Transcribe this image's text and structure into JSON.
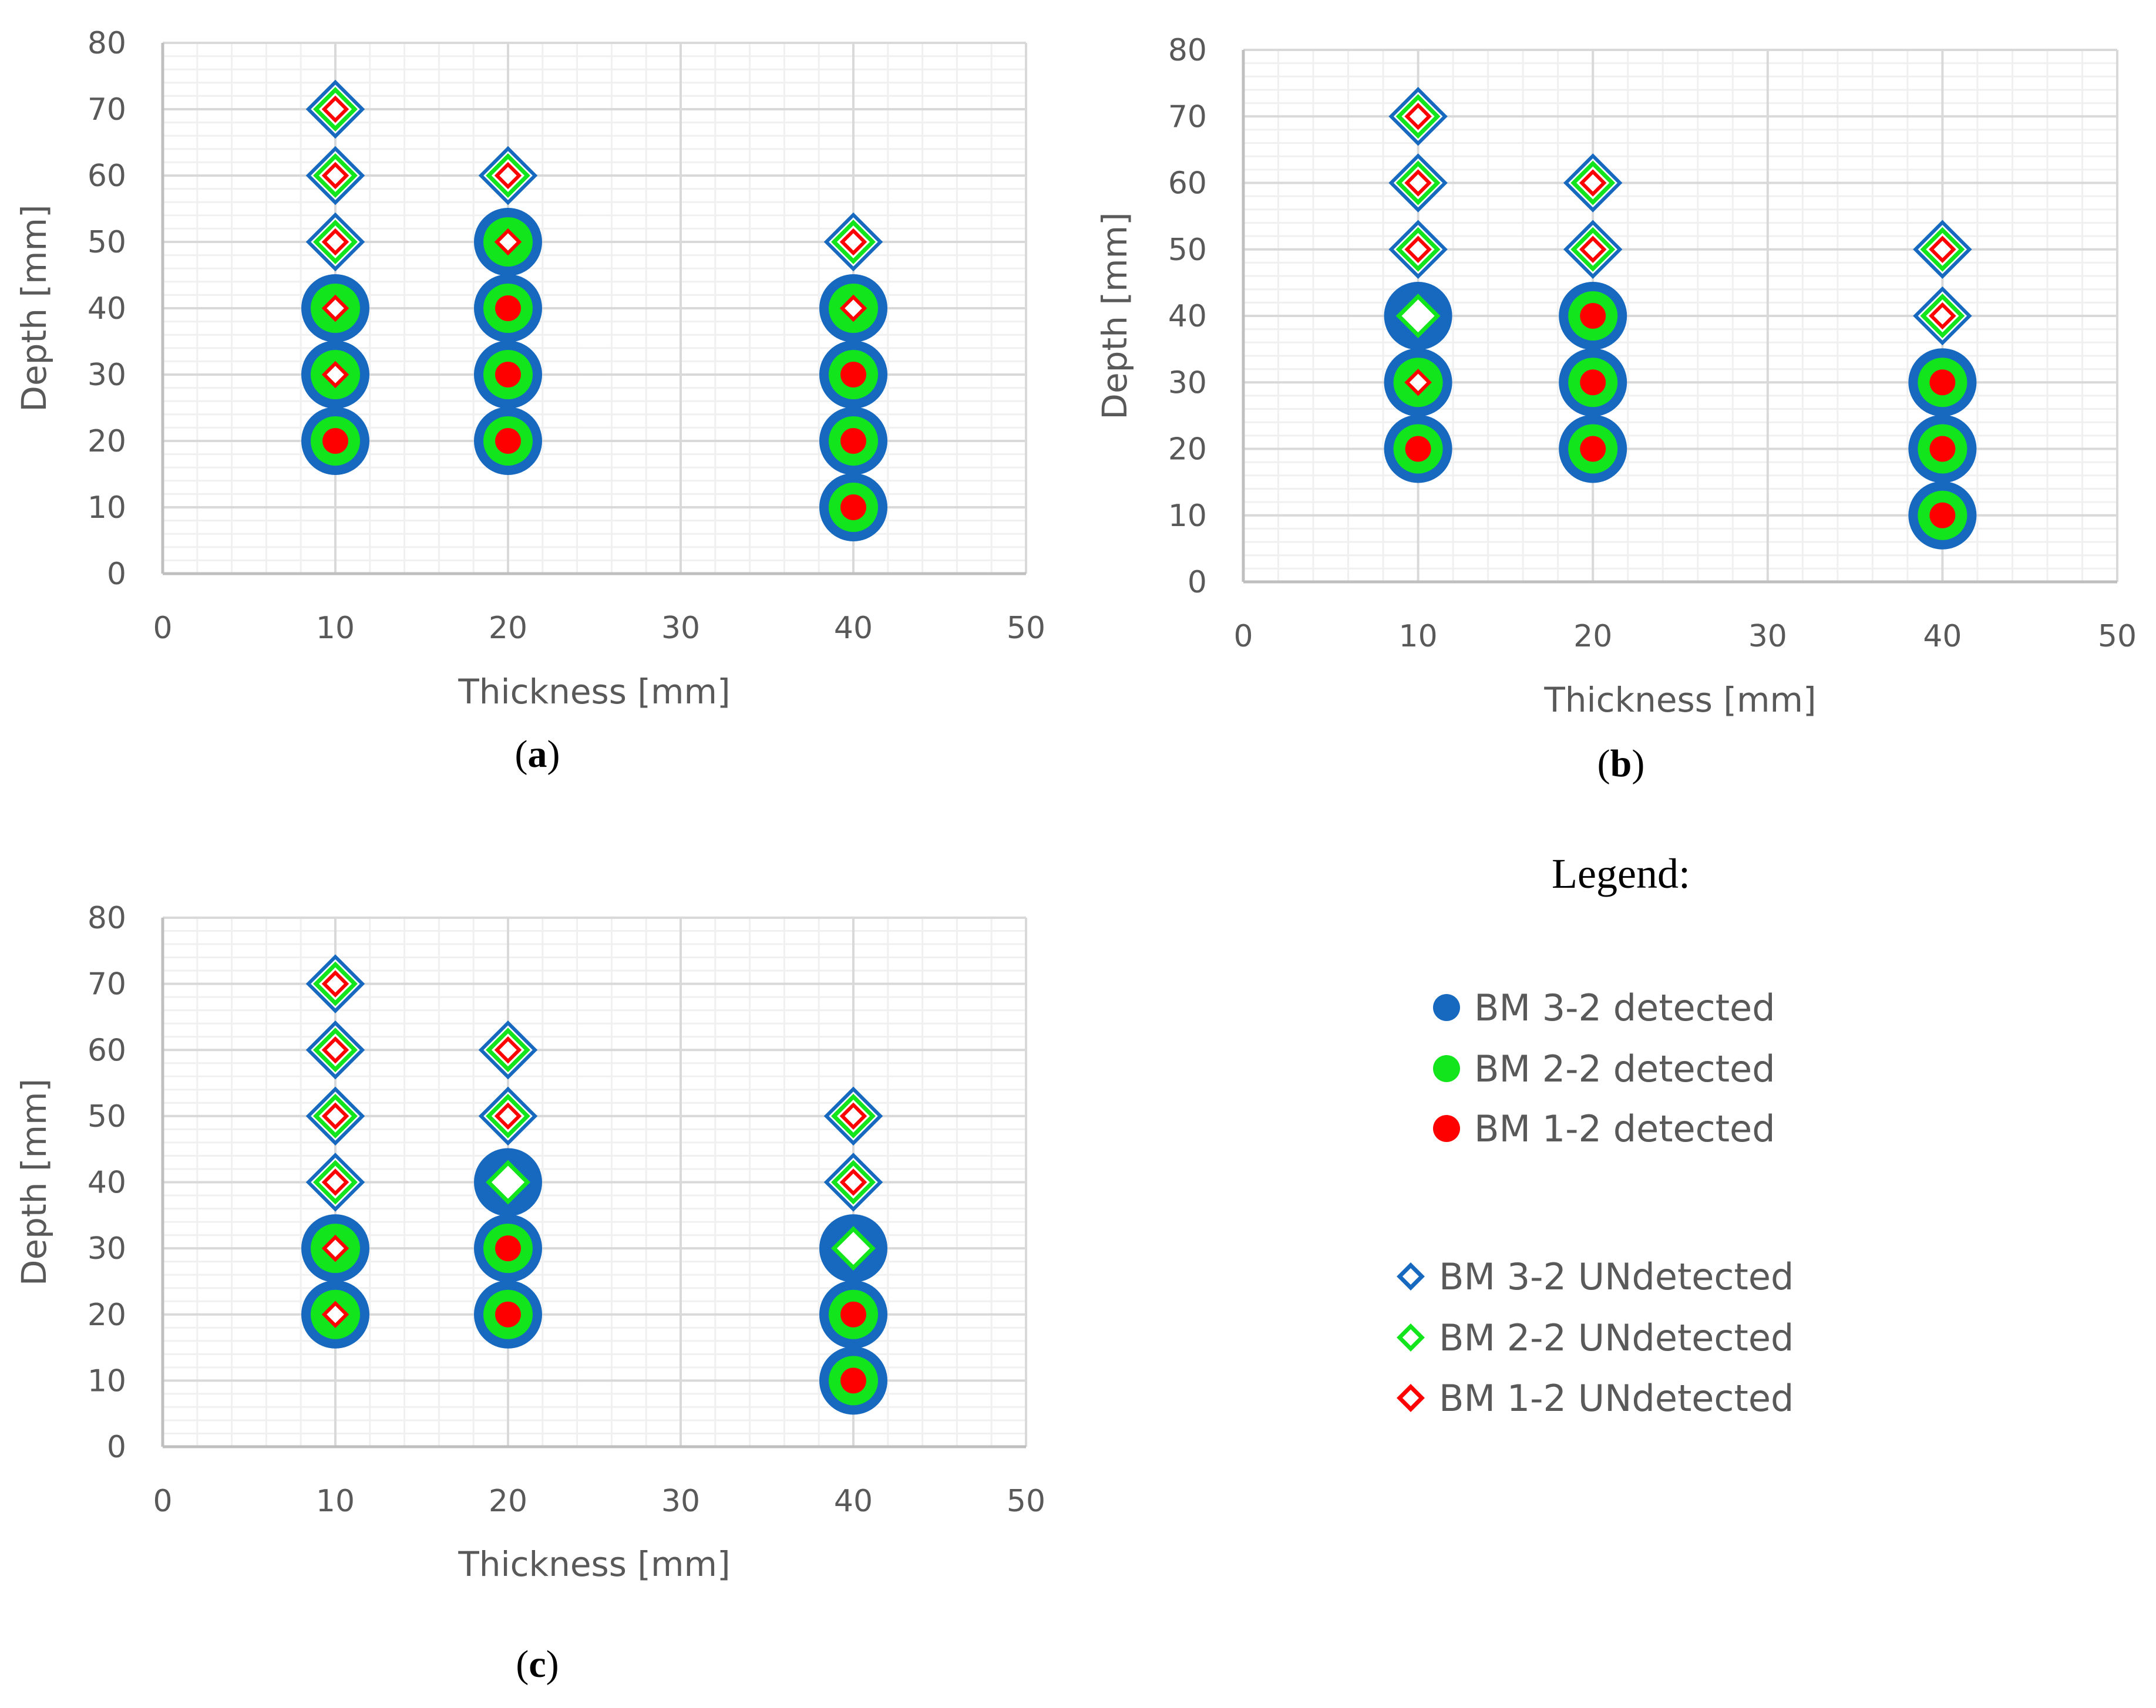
{
  "colors": {
    "bm32": "#1769C0",
    "bm22": "#12E51C",
    "bm12": "#FF0000",
    "grid_major": "#D9D9D9",
    "grid_minor": "#F0F0F0",
    "axis_text": "#595959"
  },
  "chart_data": [
    {
      "type": "scatter",
      "caption_open": "(",
      "caption_letter": "a",
      "caption_close": ")",
      "xlabel": "Thickness [mm]",
      "ylabel": "Depth [mm]",
      "xlim": [
        0,
        50
      ],
      "ylim": [
        0,
        80
      ],
      "xticks": [
        "0",
        "10",
        "20",
        "30",
        "40",
        "50"
      ],
      "yticks": [
        "0",
        "10",
        "20",
        "30",
        "40",
        "50",
        "60",
        "70",
        "80"
      ],
      "grid": true,
      "series": [
        {
          "name": "BM 3-2 detected",
          "points": [
            [
              10,
              20
            ],
            [
              10,
              30
            ],
            [
              10,
              40
            ],
            [
              20,
              20
            ],
            [
              20,
              30
            ],
            [
              20,
              40
            ],
            [
              20,
              50
            ],
            [
              40,
              10
            ],
            [
              40,
              20
            ],
            [
              40,
              30
            ],
            [
              40,
              40
            ]
          ]
        },
        {
          "name": "BM 2-2 detected",
          "points": [
            [
              10,
              20
            ],
            [
              10,
              30
            ],
            [
              10,
              40
            ],
            [
              20,
              20
            ],
            [
              20,
              30
            ],
            [
              20,
              40
            ],
            [
              20,
              50
            ],
            [
              40,
              10
            ],
            [
              40,
              20
            ],
            [
              40,
              30
            ],
            [
              40,
              40
            ]
          ]
        },
        {
          "name": "BM 1-2 detected",
          "points": [
            [
              10,
              20
            ],
            [
              20,
              20
            ],
            [
              20,
              30
            ],
            [
              20,
              40
            ],
            [
              40,
              10
            ],
            [
              40,
              20
            ],
            [
              40,
              30
            ]
          ]
        },
        {
          "name": "BM 3-2 UNdetected",
          "points": [
            [
              10,
              50
            ],
            [
              10,
              60
            ],
            [
              10,
              70
            ],
            [
              20,
              60
            ],
            [
              40,
              50
            ]
          ]
        },
        {
          "name": "BM 2-2 UNdetected",
          "points": [
            [
              10,
              50
            ],
            [
              10,
              60
            ],
            [
              10,
              70
            ],
            [
              20,
              60
            ],
            [
              40,
              50
            ]
          ]
        },
        {
          "name": "BM 1-2 UNdetected",
          "points": [
            [
              10,
              30
            ],
            [
              10,
              40
            ],
            [
              10,
              50
            ],
            [
              10,
              60
            ],
            [
              10,
              70
            ],
            [
              20,
              50
            ],
            [
              20,
              60
            ],
            [
              40,
              40
            ],
            [
              40,
              50
            ]
          ]
        }
      ]
    },
    {
      "type": "scatter",
      "caption_open": "(",
      "caption_letter": "b",
      "caption_close": ")",
      "xlabel": "Thickness [mm]",
      "ylabel": "Depth [mm]",
      "xlim": [
        0,
        50
      ],
      "ylim": [
        0,
        80
      ],
      "xticks": [
        "0",
        "10",
        "20",
        "30",
        "40",
        "50"
      ],
      "yticks": [
        "0",
        "10",
        "20",
        "30",
        "40",
        "50",
        "60",
        "70",
        "80"
      ],
      "grid": true,
      "series": [
        {
          "name": "BM 3-2 detected",
          "points": [
            [
              10,
              20
            ],
            [
              10,
              30
            ],
            [
              10,
              40
            ],
            [
              20,
              20
            ],
            [
              20,
              30
            ],
            [
              20,
              40
            ],
            [
              40,
              10
            ],
            [
              40,
              20
            ],
            [
              40,
              30
            ]
          ]
        },
        {
          "name": "BM 2-2 detected",
          "points": [
            [
              10,
              20
            ],
            [
              10,
              30
            ],
            [
              20,
              20
            ],
            [
              20,
              30
            ],
            [
              20,
              40
            ],
            [
              40,
              10
            ],
            [
              40,
              20
            ],
            [
              40,
              30
            ]
          ]
        },
        {
          "name": "BM 1-2 detected",
          "points": [
            [
              10,
              20
            ],
            [
              10,
              40
            ],
            [
              20,
              20
            ],
            [
              20,
              30
            ],
            [
              20,
              40
            ],
            [
              40,
              10
            ],
            [
              40,
              20
            ],
            [
              40,
              30
            ]
          ]
        },
        {
          "name": "BM 3-2 UNdetected",
          "points": [
            [
              10,
              50
            ],
            [
              10,
              60
            ],
            [
              10,
              70
            ],
            [
              20,
              50
            ],
            [
              20,
              60
            ],
            [
              40,
              40
            ],
            [
              40,
              50
            ]
          ]
        },
        {
          "name": "BM 2-2 UNdetected",
          "points": [
            [
              10,
              40
            ],
            [
              10,
              50
            ],
            [
              10,
              60
            ],
            [
              10,
              70
            ],
            [
              20,
              50
            ],
            [
              20,
              60
            ],
            [
              40,
              40
            ],
            [
              40,
              50
            ]
          ]
        },
        {
          "name": "BM 1-2 UNdetected",
          "points": [
            [
              10,
              30
            ],
            [
              10,
              50
            ],
            [
              10,
              60
            ],
            [
              10,
              70
            ],
            [
              20,
              50
            ],
            [
              20,
              60
            ],
            [
              40,
              40
            ],
            [
              40,
              50
            ]
          ]
        }
      ]
    },
    {
      "type": "scatter",
      "caption_open": "(",
      "caption_letter": "c",
      "caption_close": ")",
      "xlabel": "Thickness [mm]",
      "ylabel": "Depth [mm]",
      "xlim": [
        0,
        50
      ],
      "ylim": [
        0,
        80
      ],
      "xticks": [
        "0",
        "10",
        "20",
        "30",
        "40",
        "50"
      ],
      "yticks": [
        "0",
        "10",
        "20",
        "30",
        "40",
        "50",
        "60",
        "70",
        "80"
      ],
      "grid": true,
      "series": [
        {
          "name": "BM 3-2 detected",
          "points": [
            [
              10,
              20
            ],
            [
              10,
              30
            ],
            [
              20,
              20
            ],
            [
              20,
              30
            ],
            [
              20,
              40
            ],
            [
              40,
              10
            ],
            [
              40,
              20
            ],
            [
              40,
              30
            ]
          ]
        },
        {
          "name": "BM 2-2 detected",
          "points": [
            [
              10,
              20
            ],
            [
              10,
              30
            ],
            [
              20,
              20
            ],
            [
              20,
              30
            ],
            [
              40,
              10
            ],
            [
              40,
              20
            ]
          ]
        },
        {
          "name": "BM 1-2 detected",
          "points": [
            [
              20,
              20
            ],
            [
              20,
              30
            ],
            [
              20,
              40
            ],
            [
              40,
              10
            ],
            [
              40,
              20
            ],
            [
              40,
              30
            ]
          ]
        },
        {
          "name": "BM 3-2 UNdetected",
          "points": [
            [
              10,
              40
            ],
            [
              10,
              50
            ],
            [
              10,
              60
            ],
            [
              10,
              70
            ],
            [
              20,
              50
            ],
            [
              20,
              60
            ],
            [
              40,
              40
            ],
            [
              40,
              50
            ]
          ]
        },
        {
          "name": "BM 2-2 UNdetected",
          "points": [
            [
              10,
              40
            ],
            [
              10,
              50
            ],
            [
              10,
              60
            ],
            [
              10,
              70
            ],
            [
              20,
              40
            ],
            [
              20,
              50
            ],
            [
              20,
              60
            ],
            [
              40,
              30
            ],
            [
              40,
              40
            ],
            [
              40,
              50
            ]
          ]
        },
        {
          "name": "BM 1-2 UNdetected",
          "points": [
            [
              10,
              20
            ],
            [
              10,
              30
            ],
            [
              10,
              40
            ],
            [
              10,
              50
            ],
            [
              10,
              60
            ],
            [
              10,
              70
            ],
            [
              20,
              50
            ],
            [
              20,
              60
            ],
            [
              40,
              40
            ],
            [
              40,
              50
            ]
          ]
        }
      ]
    }
  ],
  "legend": {
    "title": "Legend:",
    "items": [
      {
        "label": "BM 3-2 detected",
        "marker": "circle",
        "color_key": "bm32"
      },
      {
        "label": "BM 2-2 detected",
        "marker": "circle",
        "color_key": "bm22"
      },
      {
        "label": "BM 1-2 detected",
        "marker": "circle",
        "color_key": "bm12"
      },
      {
        "label": "BM 3-2 UNdetected",
        "marker": "diamond",
        "color_key": "bm32"
      },
      {
        "label": "BM 2-2 UNdetected",
        "marker": "diamond",
        "color_key": "bm22"
      },
      {
        "label": "BM 1-2 UNdetected",
        "marker": "diamond",
        "color_key": "bm12"
      }
    ]
  }
}
